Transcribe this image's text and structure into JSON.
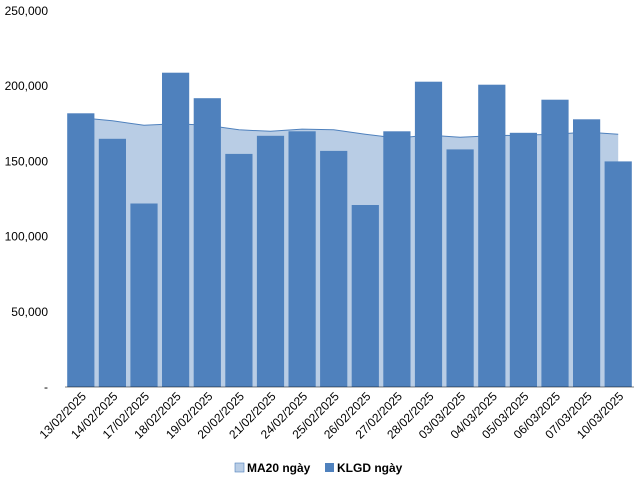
{
  "chart_data": {
    "type": "bar",
    "title": "",
    "xlabel": "",
    "ylabel": "",
    "ylim": [
      0,
      250000
    ],
    "y_ticks": [
      {
        "value": 0,
        "label": "-"
      },
      {
        "value": 50000,
        "label": "50,000"
      },
      {
        "value": 100000,
        "label": "100,000"
      },
      {
        "value": 150000,
        "label": "150,000"
      },
      {
        "value": 200000,
        "label": "200,000"
      },
      {
        "value": 250000,
        "label": "250,000"
      }
    ],
    "grid": false,
    "legend_position": "bottom",
    "categories": [
      "13/02/2025",
      "14/02/2025",
      "17/02/2025",
      "18/02/2025",
      "19/02/2025",
      "20/02/2025",
      "21/02/2025",
      "24/02/2025",
      "25/02/2025",
      "26/02/2025",
      "27/02/2025",
      "28/02/2025",
      "03/03/2025",
      "04/03/2025",
      "05/03/2025",
      "06/03/2025",
      "07/03/2025",
      "10/03/2025"
    ],
    "series": [
      {
        "name": "MA20 ngày",
        "type": "area",
        "color": "#b9cde5",
        "line_color": "#4f81bd",
        "values": [
          179000,
          177000,
          174000,
          175000,
          174000,
          171000,
          170000,
          171500,
          171000,
          168000,
          165500,
          167500,
          166000,
          167000,
          167500,
          168000,
          169500,
          168000
        ]
      },
      {
        "name": "KLGD ngày",
        "type": "bar",
        "color": "#4f81bd",
        "values": [
          182000,
          165000,
          122000,
          209000,
          192000,
          155000,
          167000,
          170000,
          157000,
          121000,
          170000,
          203000,
          158000,
          201000,
          169000,
          191000,
          178000,
          150000
        ]
      }
    ]
  }
}
